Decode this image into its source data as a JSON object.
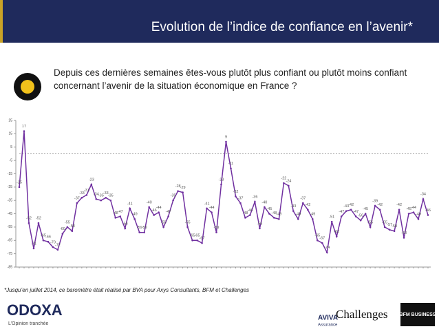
{
  "header": {
    "title": "Evolution de l’indice de confiance en l’avenir*"
  },
  "question": "Depuis ces dernières semaines êtes-vous plutôt plus confiant ou plutôt moins confiant concernant l’avenir de la situation économique en France ?",
  "chart_data": {
    "type": "line",
    "values": [
      -25,
      17,
      -52,
      -71,
      -52,
      -65,
      -66,
      -70,
      -72,
      -60,
      -55,
      -58,
      -37,
      -33,
      -31,
      -23,
      -34,
      -35,
      -33,
      -35,
      -48,
      -47,
      -56,
      -41,
      -49,
      -59,
      -59,
      -40,
      -46,
      -44,
      -55,
      -47,
      -35,
      -28,
      -29,
      -55,
      -65,
      -65,
      -67,
      -41,
      -44,
      -59,
      -23,
      9,
      -11,
      -32,
      -37,
      -48,
      -46,
      -36,
      -56,
      -40,
      -45,
      -48,
      -49,
      -22,
      -24,
      -43,
      -49,
      -37,
      -42,
      -49,
      -65,
      -67,
      -74,
      -51,
      -62,
      -47,
      -43,
      -42,
      -47,
      -50,
      -45,
      -55,
      -39,
      -42,
      -55,
      -57,
      -58,
      -42,
      -63,
      -45,
      -44,
      -49,
      -34,
      -46
    ],
    "color": "#7030a0",
    "ylim": [
      -85,
      25
    ],
    "yticks": [
      25,
      15,
      5,
      -5,
      -15,
      -25,
      -35,
      -45,
      -55,
      -65,
      -75,
      -85
    ],
    "reference_line": 0
  },
  "footnote": "*Jusqu’en juillet 2014, ce baromètre était réalisé par BVA pour Axys Consultants, BFM et Challenges",
  "footer": {
    "brand": "ODOXA",
    "tagline": "L’Opinion tranchée",
    "logo1": "AVIVA",
    "logo1_sub": "Assurance",
    "logo2": "Challenges",
    "logo3": "BFM BUSINESS"
  }
}
